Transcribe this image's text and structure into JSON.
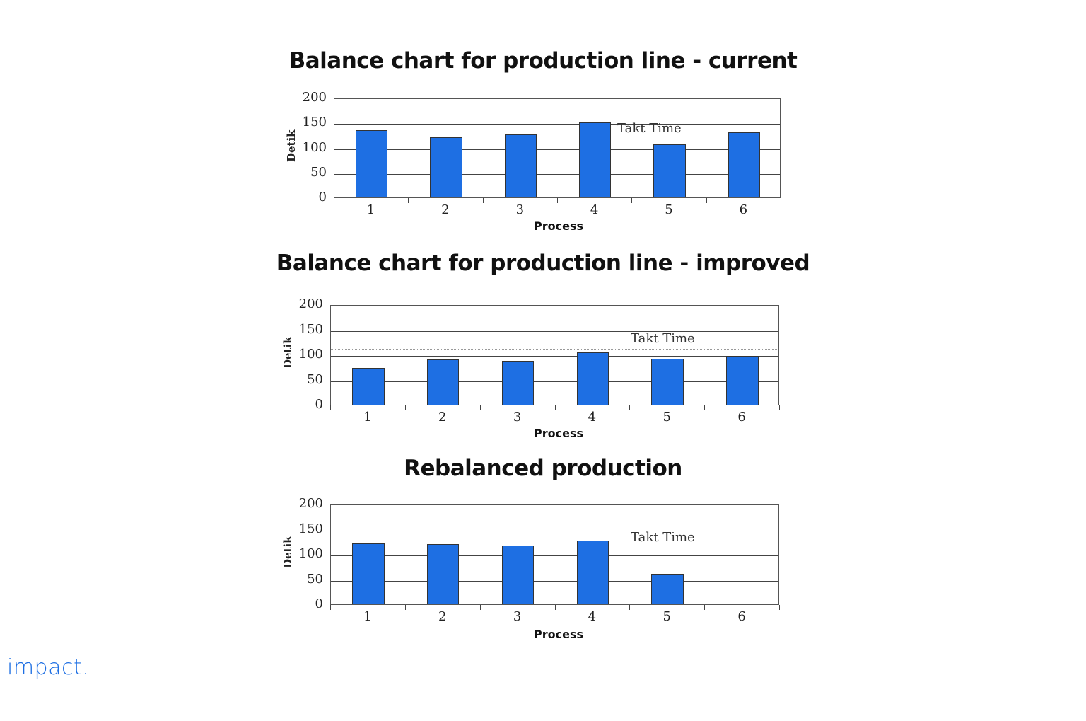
{
  "logo": {
    "text": "impact.",
    "color": "#1e6fe3"
  },
  "bar_color": "#1e6fe3",
  "chart_data": [
    {
      "type": "bar",
      "title": "Balance chart for production line - current",
      "xlabel": "Process",
      "ylabel": "Detik",
      "categories": [
        "1",
        "2",
        "3",
        "4",
        "5",
        "6"
      ],
      "values": [
        135,
        120,
        126,
        150,
        107,
        130
      ],
      "ylim": [
        0,
        200
      ],
      "yticks": [
        "200",
        "150",
        "100",
        "50",
        "0"
      ],
      "grid": true,
      "annotations": [
        {
          "type": "hline",
          "label": "Takt Time",
          "value": 120,
          "style": "dotted"
        }
      ]
    },
    {
      "type": "bar",
      "title": "Balance chart for production line - improved",
      "xlabel": "Process",
      "ylabel": "Detik",
      "categories": [
        "1",
        "2",
        "3",
        "4",
        "5",
        "6"
      ],
      "values": [
        73,
        90,
        87,
        104,
        91,
        97
      ],
      "ylim": [
        0,
        200
      ],
      "yticks": [
        "200",
        "150",
        "100",
        "50",
        "0"
      ],
      "grid": true,
      "annotations": [
        {
          "type": "hline",
          "label": "Takt Time",
          "value": 114,
          "style": "dotted"
        }
      ]
    },
    {
      "type": "bar",
      "title": "Rebalanced production",
      "xlabel": "Process",
      "ylabel": "Detik",
      "categories": [
        "1",
        "2",
        "3",
        "4",
        "5",
        "6"
      ],
      "values": [
        121,
        120,
        117,
        127,
        61,
        0
      ],
      "ylim": [
        0,
        200
      ],
      "yticks": [
        "200",
        "150",
        "100",
        "50",
        "0"
      ],
      "grid": true,
      "annotations": [
        {
          "type": "hline",
          "label": "Takt Time",
          "value": 116,
          "style": "dotted"
        }
      ]
    }
  ]
}
